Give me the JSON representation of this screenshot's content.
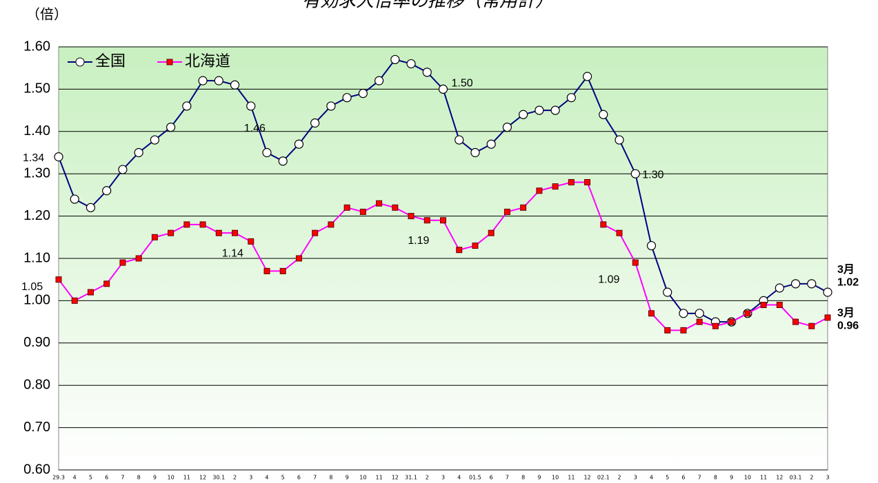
{
  "chart_data": {
    "type": "line",
    "title": "有効求人倍率の推移（常用計）",
    "y_unit": "（倍）",
    "categories": [
      "29.3",
      "4",
      "5",
      "6",
      "7",
      "8",
      "9",
      "10",
      "11",
      "12",
      "30.1",
      "2",
      "3",
      "4",
      "5",
      "6",
      "7",
      "8",
      "9",
      "10",
      "11",
      "12",
      "31.1",
      "2",
      "3",
      "4",
      "01.5",
      "6",
      "7",
      "8",
      "9",
      "10",
      "11",
      "12",
      "02.1",
      "2",
      "3",
      "4",
      "5",
      "6",
      "7",
      "8",
      "9",
      "10",
      "11",
      "12",
      "03.1",
      "2",
      "3"
    ],
    "series": [
      {
        "name": "全国",
        "color": "#000080",
        "marker": "circle",
        "values": [
          1.34,
          1.24,
          1.22,
          1.26,
          1.31,
          1.35,
          1.38,
          1.41,
          1.46,
          1.52,
          1.52,
          1.51,
          1.46,
          1.35,
          1.33,
          1.37,
          1.42,
          1.46,
          1.48,
          1.49,
          1.52,
          1.57,
          1.56,
          1.54,
          1.5,
          1.38,
          1.35,
          1.37,
          1.41,
          1.44,
          1.45,
          1.45,
          1.48,
          1.53,
          1.44,
          1.38,
          1.3,
          1.13,
          1.02,
          0.97,
          0.97,
          0.95,
          0.95,
          0.97,
          1.0,
          1.03,
          1.04,
          1.04,
          1.02
        ],
        "value_labels": [
          "1.34",
          null,
          null,
          null,
          null,
          null,
          null,
          null,
          null,
          null,
          null,
          null,
          "1.46",
          null,
          null,
          null,
          null,
          null,
          null,
          null,
          null,
          null,
          null,
          null,
          "1.50",
          null,
          null,
          null,
          null,
          null,
          null,
          null,
          null,
          null,
          null,
          null,
          "1.30",
          null,
          null,
          null,
          null,
          null,
          null,
          null,
          null,
          null,
          null,
          null,
          "3月\n1.02"
        ]
      },
      {
        "name": "北海道",
        "color": "#ff00ff",
        "marker": "square",
        "marker_color": "#ff0000",
        "values": [
          1.05,
          1.0,
          1.02,
          1.04,
          1.09,
          1.1,
          1.15,
          1.16,
          1.18,
          1.18,
          1.16,
          1.16,
          1.14,
          1.07,
          1.07,
          1.1,
          1.16,
          1.18,
          1.22,
          1.21,
          1.23,
          1.22,
          1.2,
          1.19,
          1.19,
          1.12,
          1.13,
          1.16,
          1.21,
          1.22,
          1.26,
          1.27,
          1.28,
          1.28,
          1.18,
          1.16,
          1.09,
          0.97,
          0.93,
          0.93,
          0.95,
          0.94,
          0.95,
          0.97,
          0.99,
          0.99,
          0.95,
          0.94,
          0.96
        ],
        "value_labels": [
          "1.05",
          null,
          null,
          null,
          null,
          null,
          null,
          null,
          null,
          null,
          null,
          null,
          "1.14",
          null,
          null,
          null,
          null,
          null,
          null,
          null,
          null,
          null,
          null,
          "1.19",
          null,
          null,
          null,
          null,
          null,
          null,
          null,
          null,
          null,
          null,
          null,
          null,
          "1.09",
          null,
          null,
          null,
          null,
          null,
          null,
          null,
          null,
          null,
          null,
          null,
          "3月\n0.96"
        ]
      }
    ],
    "ylim": [
      0.6,
      1.6
    ],
    "yticks": [
      {
        "value": 0.6,
        "label": "0.60"
      },
      {
        "value": 0.7,
        "label": "0.70"
      },
      {
        "value": 0.8,
        "label": "0.80"
      },
      {
        "value": 0.9,
        "label": "0.90"
      },
      {
        "value": 1.0,
        "label": "1.00"
      },
      {
        "value": 1.1,
        "label": "1.10"
      },
      {
        "value": 1.2,
        "label": "1.20"
      },
      {
        "value": 1.3,
        "label": "1.30"
      },
      {
        "value": 1.4,
        "label": "1.40"
      },
      {
        "value": 1.5,
        "label": "1.50"
      },
      {
        "value": 1.6,
        "label": "1.60"
      }
    ],
    "grid": true,
    "legend": "upper left"
  }
}
